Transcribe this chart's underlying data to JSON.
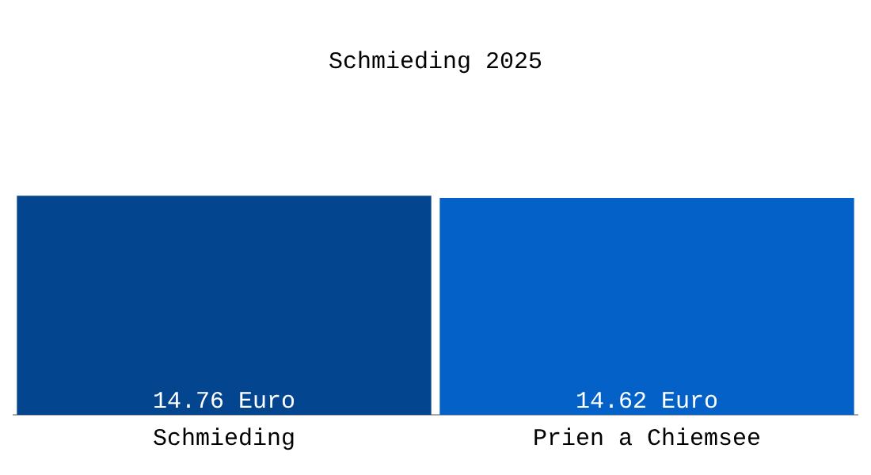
{
  "chart_data": {
    "type": "bar",
    "title": "Schmieding 2025",
    "categories": [
      "Schmieding",
      "Prien a Chiemsee"
    ],
    "values": [
      14.76,
      14.62
    ],
    "colors": [
      "#03468f",
      "#0461c8"
    ],
    "value_labels": [
      "14.76 Euro",
      "14.62 Euro"
    ],
    "legend": false,
    "grid": false
  }
}
